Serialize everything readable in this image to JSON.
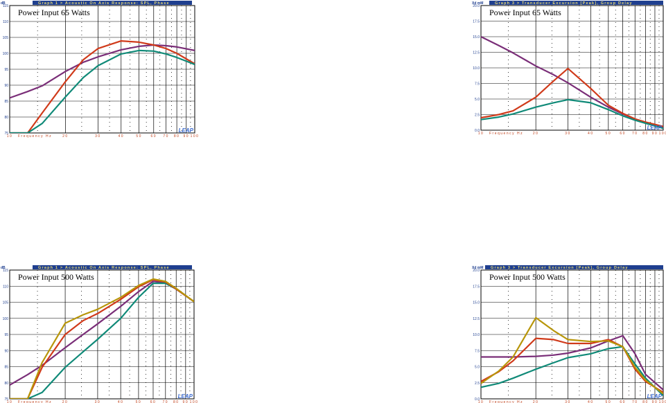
{
  "chart_data": [
    {
      "type": "line",
      "title": "Graph 1 > Acoustic On Axis Response: SPL, Phase",
      "annotation": "Power Input 65 Watts",
      "watermark": "LEAP",
      "ylabel": "dB",
      "xlabel": "Frequency Hz",
      "xscale": "log",
      "grid": true,
      "x": [
        10,
        12.5,
        15,
        20,
        25,
        30,
        40,
        50,
        60,
        70,
        80,
        100
      ],
      "xlim": [
        10,
        100
      ],
      "xticks": [
        10,
        20,
        30,
        40,
        50,
        60,
        70,
        80,
        90,
        100
      ],
      "ylim": [
        75,
        115
      ],
      "yticks": [
        75,
        80,
        85,
        90,
        95,
        100,
        105,
        110,
        115
      ],
      "series": [
        {
          "color": "#7a2e78",
          "values": [
            86,
            88,
            89.8,
            94.3,
            97.2,
            98.9,
            101.1,
            102.2,
            102.6,
            102.4,
            102,
            100.9
          ]
        },
        {
          "color": "#d03a1a",
          "values": [
            75,
            75,
            81.3,
            91.1,
            98,
            101.5,
            103.9,
            103.5,
            102.6,
            101.5,
            100,
            96.7
          ]
        },
        {
          "color": "#108a78",
          "values": [
            75,
            75,
            78,
            86.3,
            92.4,
            96.1,
            99.8,
            100.9,
            100.7,
            99.8,
            98.7,
            96.5
          ]
        }
      ]
    },
    {
      "type": "line",
      "title": "Graph 3 > Transducer Excursion [Peak], Group Delay",
      "annotation": "Power Input 65 Watts",
      "watermark": "LEAP",
      "ylabel": "Xd mM",
      "xlabel": "Frequency Hz",
      "xscale": "log",
      "grid": true,
      "x": [
        10,
        12.5,
        15,
        20,
        25,
        30,
        40,
        50,
        60,
        70,
        80,
        100
      ],
      "xlim": [
        10,
        100
      ],
      "xticks": [
        10,
        20,
        30,
        40,
        50,
        60,
        70,
        80,
        90,
        100
      ],
      "ylim": [
        0,
        20
      ],
      "yticks": [
        {
          "value": 0,
          "label": "0.0"
        },
        2.5,
        {
          "value": 5,
          "label": "5.0"
        },
        7.5,
        {
          "value": 10,
          "label": "10.0"
        },
        12.5,
        {
          "value": 15,
          "label": "15.0"
        },
        17.5,
        {
          "value": 20,
          "label": "20.0"
        }
      ],
      "series": [
        {
          "color": "#7a2e78",
          "values": [
            15,
            13.6,
            12.4,
            10.3,
            8.9,
            7.6,
            5.3,
            3.7,
            2.6,
            1.8,
            1.2,
            0.4
          ]
        },
        {
          "color": "#d03a1a",
          "values": [
            2,
            2.5,
            3.1,
            5.3,
            7.9,
            9.9,
            6.7,
            4,
            2.7,
            1.8,
            1.3,
            0.6
          ]
        },
        {
          "color": "#108a78",
          "values": [
            1.7,
            2.1,
            2.6,
            3.7,
            4.4,
            4.9,
            4.4,
            3.3,
            2.3,
            1.6,
            1.1,
            0.3
          ]
        }
      ]
    },
    {
      "type": "line",
      "title": "Graph 1 > Acoustic On Axis Response: SPL, Phase",
      "annotation": "Power Input 500 Watts",
      "watermark": "LEAP",
      "ylabel": "dB",
      "xlabel": "Frequency Hz",
      "xscale": "log",
      "grid": true,
      "x": [
        10,
        12.5,
        15,
        20,
        25,
        30,
        40,
        50,
        60,
        70,
        80,
        100
      ],
      "xlim": [
        10,
        100
      ],
      "xticks": [
        10,
        20,
        30,
        40,
        50,
        60,
        70,
        80,
        90,
        100
      ],
      "ylim": [
        75,
        115
      ],
      "yticks": [
        75,
        80,
        85,
        90,
        95,
        100,
        105,
        110,
        115
      ],
      "series": [
        {
          "color": "#7a2e78",
          "values": [
            79.3,
            82.5,
            85.4,
            90.9,
            95,
            98.3,
            103.7,
            108.3,
            111.5,
            111.1,
            109.1,
            105.2
          ]
        },
        {
          "color": "#108a78",
          "values": [
            75,
            75,
            77,
            84.8,
            89.6,
            93.5,
            100,
            106.5,
            110.9,
            110.9,
            109.1,
            105.2
          ]
        },
        {
          "color": "#d03a1a",
          "values": [
            75,
            75,
            84.8,
            95,
            99.3,
            101.5,
            105.9,
            109.8,
            112,
            111.3,
            109.1,
            105.2
          ]
        },
        {
          "color": "#b8960a",
          "values": [
            75,
            75,
            86.3,
            98.5,
            101.1,
            102.8,
            106.5,
            110.2,
            112.2,
            111.5,
            109.3,
            105.2
          ]
        }
      ]
    },
    {
      "type": "line",
      "title": "Graph 3 > Transducer Excursion [Peak], Group Delay",
      "annotation": "Power Input 500 Watts",
      "watermark": "LEAP",
      "ylabel": "Xd mM",
      "xlabel": "Frequency Hz",
      "xscale": "log",
      "grid": true,
      "x": [
        10,
        12.5,
        15,
        20,
        25,
        30,
        40,
        50,
        60,
        70,
        80,
        100
      ],
      "xlim": [
        10,
        100
      ],
      "xticks": [
        10,
        20,
        30,
        40,
        50,
        60,
        70,
        80,
        90,
        100
      ],
      "ylim": [
        0,
        20
      ],
      "yticks": [
        {
          "value": 0,
          "label": "0.0"
        },
        2.5,
        {
          "value": 5,
          "label": "5.0"
        },
        7.5,
        {
          "value": 10,
          "label": "10.0"
        },
        12.5,
        {
          "value": 15,
          "label": "15.0"
        },
        17.5,
        {
          "value": 20,
          "label": "20.0"
        }
      ],
      "series": [
        {
          "color": "#108a78",
          "values": [
            1.8,
            2.4,
            3.2,
            4.6,
            5.6,
            6.4,
            7,
            7.8,
            8.1,
            5.4,
            3.2,
            0.5
          ]
        },
        {
          "color": "#7a2e78",
          "values": [
            6.5,
            6.5,
            6.5,
            6.6,
            6.8,
            7.1,
            7.9,
            9,
            9.8,
            7,
            3.8,
            1.4
          ]
        },
        {
          "color": "#d03a1a",
          "values": [
            2.7,
            4.2,
            5.9,
            9.4,
            9.2,
            8.6,
            8.6,
            9.2,
            8.1,
            4.6,
            2.7,
            1
          ]
        },
        {
          "color": "#b8960a",
          "values": [
            2.4,
            4.3,
            6.5,
            12.6,
            10.6,
            9.2,
            8.9,
            9,
            8.1,
            4.9,
            2.9,
            0.8
          ]
        }
      ]
    }
  ]
}
